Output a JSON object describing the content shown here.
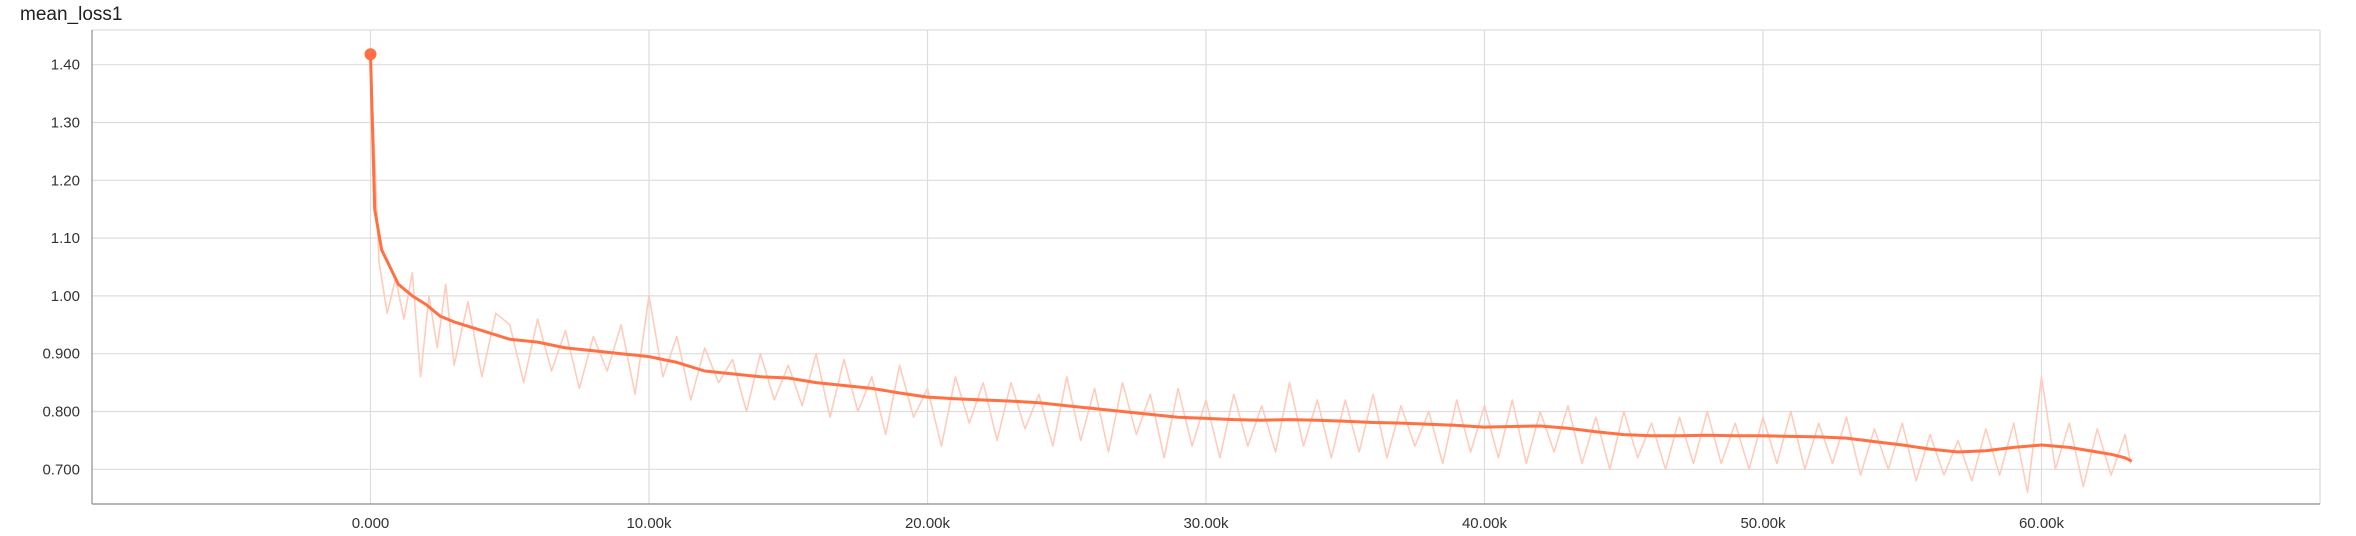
{
  "chart_data": {
    "type": "line",
    "title": "mean_loss1",
    "xlabel": "",
    "ylabel": "",
    "xlim": [
      -10000,
      70000
    ],
    "ylim": [
      0.64,
      1.46
    ],
    "x_ticks": [
      0,
      10000,
      20000,
      30000,
      40000,
      50000,
      60000
    ],
    "x_tick_labels": [
      "0.000",
      "10.00k",
      "20.00k",
      "30.00k",
      "40.00k",
      "50.00k",
      "60.00k"
    ],
    "y_ticks": [
      0.7,
      0.8,
      0.9,
      1.0,
      1.1,
      1.2,
      1.3,
      1.4
    ],
    "y_tick_labels": [
      "0.700",
      "0.800",
      "0.900",
      "1.00",
      "1.10",
      "1.20",
      "1.30",
      "1.40"
    ],
    "grid": true,
    "colors": {
      "smoothed": "#ff7043",
      "raw": "#ffccbc",
      "grid": "#dddddd",
      "axis": "#9e9e9e"
    },
    "series": [
      {
        "role": "smoothed",
        "x": [
          0,
          150,
          400,
          700,
          1000,
          1500,
          2000,
          2500,
          3000,
          4000,
          5000,
          6000,
          7000,
          8000,
          9000,
          10000,
          11000,
          12000,
          13000,
          14000,
          15000,
          16000,
          17000,
          18000,
          19000,
          20000,
          21000,
          22000,
          23000,
          24000,
          25000,
          26000,
          27000,
          28000,
          29000,
          30000,
          31000,
          32000,
          33000,
          34000,
          35000,
          36000,
          37000,
          38000,
          39000,
          40000,
          41000,
          42000,
          43000,
          44000,
          45000,
          46000,
          47000,
          48000,
          49000,
          50000,
          51000,
          52000,
          53000,
          54000,
          55000,
          56000,
          57000,
          58000,
          59000,
          60000,
          61000,
          62000,
          62500,
          63000,
          63200
        ],
        "y": [
          1.418,
          1.15,
          1.08,
          1.05,
          1.02,
          1.0,
          0.985,
          0.965,
          0.955,
          0.94,
          0.925,
          0.92,
          0.91,
          0.905,
          0.9,
          0.895,
          0.885,
          0.87,
          0.865,
          0.86,
          0.858,
          0.85,
          0.845,
          0.84,
          0.832,
          0.825,
          0.822,
          0.82,
          0.818,
          0.815,
          0.81,
          0.805,
          0.8,
          0.795,
          0.79,
          0.788,
          0.786,
          0.785,
          0.786,
          0.785,
          0.783,
          0.781,
          0.78,
          0.778,
          0.776,
          0.773,
          0.774,
          0.775,
          0.771,
          0.765,
          0.76,
          0.758,
          0.758,
          0.759,
          0.758,
          0.758,
          0.757,
          0.756,
          0.754,
          0.748,
          0.742,
          0.735,
          0.73,
          0.732,
          0.738,
          0.742,
          0.738,
          0.73,
          0.726,
          0.72,
          0.715
        ]
      },
      {
        "role": "raw",
        "x": [
          0,
          300,
          600,
          900,
          1200,
          1500,
          1800,
          2100,
          2400,
          2700,
          3000,
          3500,
          4000,
          4500,
          5000,
          5500,
          6000,
          6500,
          7000,
          7500,
          8000,
          8500,
          9000,
          9500,
          10000,
          10500,
          11000,
          11500,
          12000,
          12500,
          13000,
          13500,
          14000,
          14500,
          15000,
          15500,
          16000,
          16500,
          17000,
          17500,
          18000,
          18500,
          19000,
          19500,
          20000,
          20500,
          21000,
          21500,
          22000,
          22500,
          23000,
          23500,
          24000,
          24500,
          25000,
          25500,
          26000,
          26500,
          27000,
          27500,
          28000,
          28500,
          29000,
          29500,
          30000,
          30500,
          31000,
          31500,
          32000,
          32500,
          33000,
          33500,
          34000,
          34500,
          35000,
          35500,
          36000,
          36500,
          37000,
          37500,
          38000,
          38500,
          39000,
          39500,
          40000,
          40500,
          41000,
          41500,
          42000,
          42500,
          43000,
          43500,
          44000,
          44500,
          45000,
          45500,
          46000,
          46500,
          47000,
          47500,
          48000,
          48500,
          49000,
          49500,
          50000,
          50500,
          51000,
          51500,
          52000,
          52500,
          53000,
          53500,
          54000,
          54500,
          55000,
          55500,
          56000,
          56500,
          57000,
          57500,
          58000,
          58500,
          59000,
          59500,
          60000,
          60500,
          61000,
          61500,
          62000,
          62500,
          63000,
          63200
        ],
        "y": [
          1.418,
          1.06,
          0.97,
          1.03,
          0.96,
          1.04,
          0.86,
          1.0,
          0.91,
          1.02,
          0.88,
          0.99,
          0.86,
          0.97,
          0.95,
          0.85,
          0.96,
          0.87,
          0.94,
          0.84,
          0.93,
          0.87,
          0.95,
          0.83,
          1.0,
          0.86,
          0.93,
          0.82,
          0.91,
          0.85,
          0.89,
          0.8,
          0.9,
          0.82,
          0.88,
          0.81,
          0.9,
          0.79,
          0.89,
          0.8,
          0.86,
          0.76,
          0.88,
          0.79,
          0.84,
          0.74,
          0.86,
          0.78,
          0.85,
          0.75,
          0.85,
          0.77,
          0.83,
          0.74,
          0.86,
          0.75,
          0.84,
          0.73,
          0.85,
          0.76,
          0.83,
          0.72,
          0.84,
          0.74,
          0.82,
          0.72,
          0.83,
          0.74,
          0.81,
          0.73,
          0.85,
          0.74,
          0.82,
          0.72,
          0.82,
          0.73,
          0.83,
          0.72,
          0.81,
          0.74,
          0.8,
          0.71,
          0.82,
          0.73,
          0.81,
          0.72,
          0.82,
          0.71,
          0.8,
          0.73,
          0.81,
          0.71,
          0.79,
          0.7,
          0.8,
          0.72,
          0.78,
          0.7,
          0.79,
          0.71,
          0.8,
          0.71,
          0.78,
          0.7,
          0.79,
          0.71,
          0.8,
          0.7,
          0.78,
          0.71,
          0.79,
          0.69,
          0.77,
          0.7,
          0.78,
          0.68,
          0.76,
          0.69,
          0.75,
          0.68,
          0.77,
          0.69,
          0.78,
          0.66,
          0.86,
          0.7,
          0.78,
          0.67,
          0.77,
          0.69,
          0.76,
          0.71
        ]
      }
    ]
  }
}
